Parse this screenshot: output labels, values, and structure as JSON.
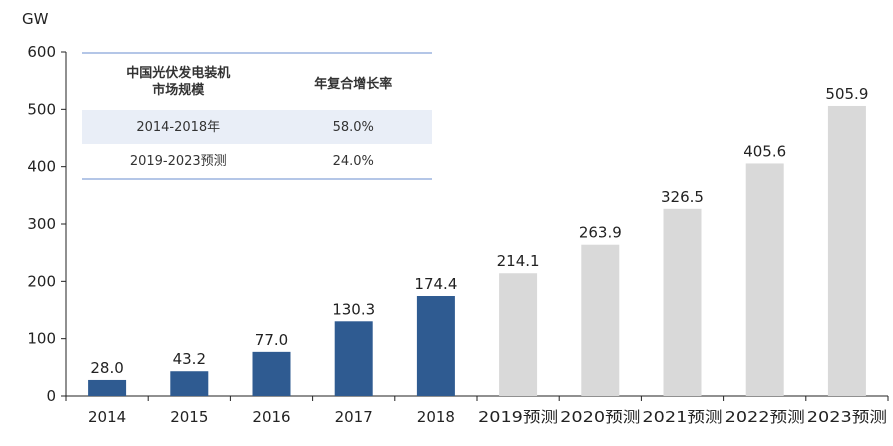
{
  "chart_data": {
    "type": "bar",
    "unit_label": "GW",
    "categories": [
      "2014",
      "2015",
      "2016",
      "2017",
      "2018",
      "2019预测",
      "2020预测",
      "2021预测",
      "2022预测",
      "2023预测"
    ],
    "values": [
      28.0,
      43.2,
      77.0,
      130.3,
      174.4,
      214.1,
      263.9,
      326.5,
      405.6,
      505.9
    ],
    "value_labels": [
      "28.0",
      "43.2",
      "77.0",
      "130.3",
      "174.4",
      "214.1",
      "263.9",
      "326.5",
      "405.6",
      "505.9"
    ],
    "bar_colors": [
      "#2f5b91",
      "#2f5b91",
      "#2f5b91",
      "#2f5b91",
      "#2f5b91",
      "#d9d9d9",
      "#d9d9d9",
      "#d9d9d9",
      "#d9d9d9",
      "#d9d9d9"
    ],
    "ylim": [
      0,
      600
    ],
    "yticks": [
      0,
      100,
      200,
      300,
      400,
      500,
      600
    ],
    "grid": false
  },
  "inset_table": {
    "headers": [
      "中国光伏发电装机\n市场规模",
      "年复合增长率"
    ],
    "rows": [
      [
        "2014-2018年",
        "58.0%"
      ],
      [
        "2019-2023预测",
        "24.0%"
      ]
    ]
  }
}
